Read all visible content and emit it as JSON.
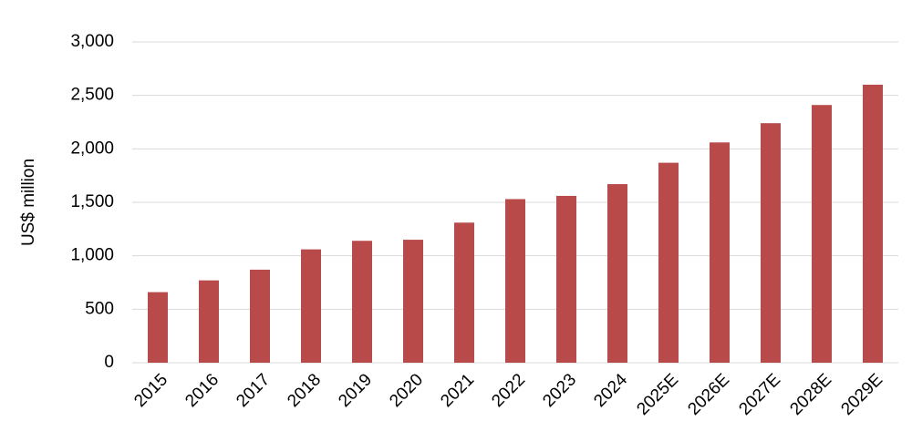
{
  "chart_data": {
    "type": "bar",
    "y_label": "US$ million",
    "categories": [
      "2015",
      "2016",
      "2017",
      "2018",
      "2019",
      "2020",
      "2021",
      "2022",
      "2023",
      "2024",
      "2025E",
      "2026E",
      "2027E",
      "2028E",
      "2029E"
    ],
    "values": [
      660,
      770,
      870,
      1060,
      1140,
      1150,
      1310,
      1530,
      1560,
      1670,
      1870,
      2060,
      2240,
      2410,
      2600
    ],
    "color": "#b84a4a",
    "ylim": [
      0,
      3000
    ],
    "yticks": [
      0,
      500,
      {
        "value": 1000,
        "label": "1,000"
      },
      {
        "value": 1500,
        "label": "1,500"
      },
      {
        "value": 2000,
        "label": "2,000"
      },
      {
        "value": 2500,
        "label": "2,500"
      },
      {
        "value": 3000,
        "label": "3,000"
      }
    ],
    "grid": true
  }
}
